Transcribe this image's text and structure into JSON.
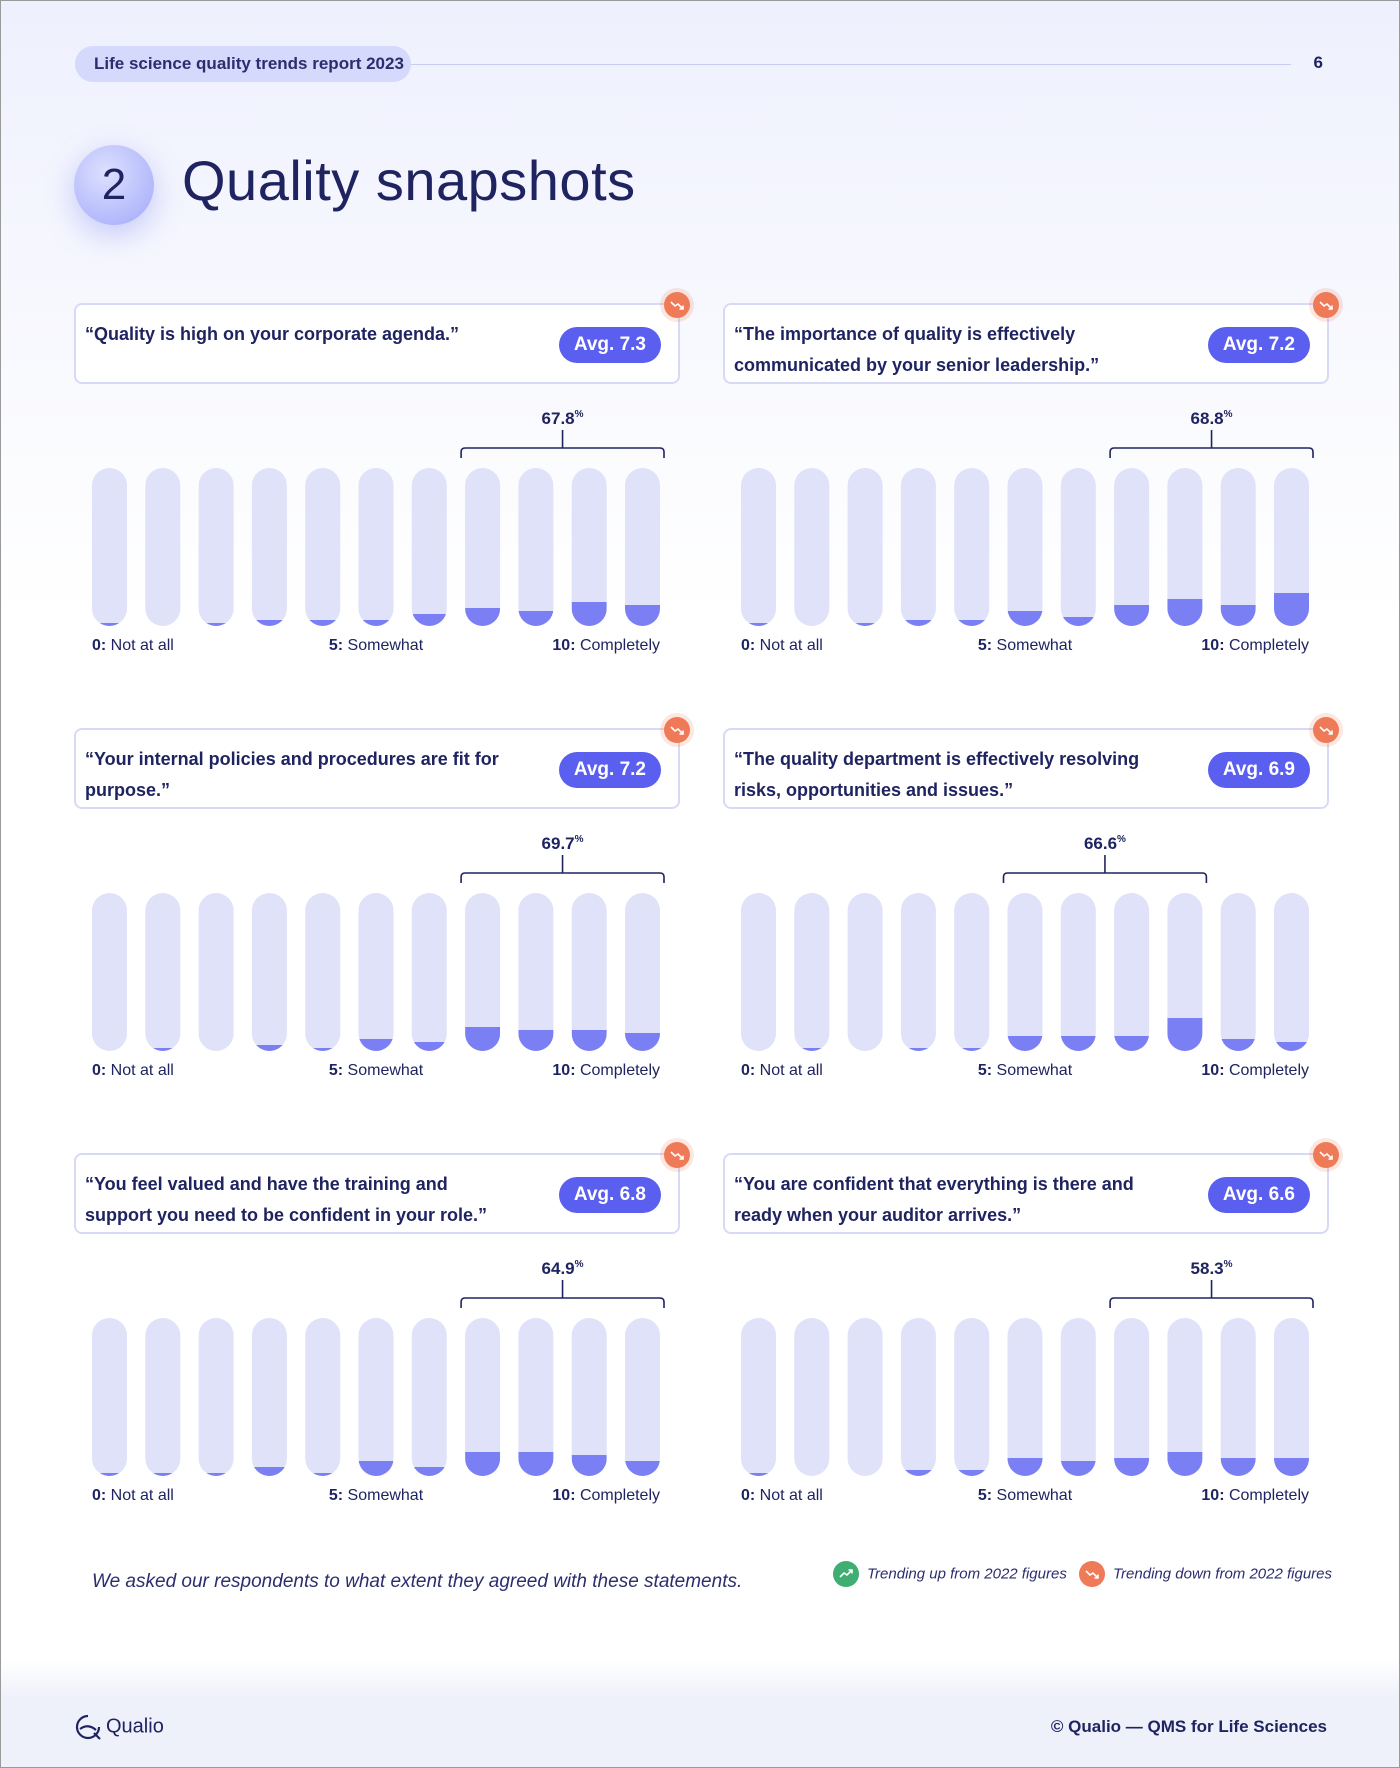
{
  "header": {
    "report_title": "Life science quality trends report 2023",
    "page_number": "6"
  },
  "section": {
    "number": "2",
    "title": "Quality snapshots"
  },
  "colors": {
    "accent": "#5a5ff0",
    "bar_track": "#dfe2f8",
    "bar_fill": "#7a80f4",
    "trend_down": "#ef7a57",
    "trend_up": "#3fae72"
  },
  "icons": {
    "trend_down": "trending-down-icon",
    "trend_up": "trending-up-icon",
    "logo": "qualio-logo-icon"
  },
  "chart_data": [
    {
      "type": "bar",
      "statement": "“Quality is high on your corporate agenda.”",
      "average": "Avg. 7.3",
      "trend": "down",
      "categories": [
        "0",
        "1",
        "2",
        "3",
        "4",
        "5",
        "6",
        "7",
        "8",
        "9",
        "10"
      ],
      "values": [
        1,
        0,
        1,
        2,
        2,
        2,
        4,
        6,
        5,
        8,
        7
      ],
      "bracket": {
        "from": 7,
        "to": 10,
        "label": "67.8",
        "unit": "%"
      },
      "axis_labels": [
        {
          "at": 0,
          "value": "0:",
          "text": " Not at all"
        },
        {
          "at": 5,
          "value": "5:",
          "text": " Somewhat"
        },
        {
          "at": 10,
          "value": "10:",
          "text": " Completely"
        }
      ]
    },
    {
      "type": "bar",
      "statement": "“The importance of quality is effectively communicated by your senior leadership.”",
      "average": "Avg. 7.2",
      "trend": "down",
      "categories": [
        "0",
        "1",
        "2",
        "3",
        "4",
        "5",
        "6",
        "7",
        "8",
        "9",
        "10"
      ],
      "values": [
        1,
        0,
        1,
        2,
        2,
        5,
        3,
        7,
        9,
        7,
        11
      ],
      "bracket": {
        "from": 7,
        "to": 10,
        "label": "68.8",
        "unit": "%"
      },
      "axis_labels": [
        {
          "at": 0,
          "value": "0:",
          "text": " Not at all"
        },
        {
          "at": 5,
          "value": "5:",
          "text": " Somewhat"
        },
        {
          "at": 10,
          "value": "10:",
          "text": " Completely"
        }
      ]
    },
    {
      "type": "bar",
      "statement": "“Your internal policies and procedures are fit for purpose.”",
      "average": "Avg. 7.2",
      "trend": "down",
      "categories": [
        "0",
        "1",
        "2",
        "3",
        "4",
        "5",
        "6",
        "7",
        "8",
        "9",
        "10"
      ],
      "values": [
        0,
        1,
        0,
        2,
        1,
        4,
        3,
        8,
        7,
        7,
        6
      ],
      "bracket": {
        "from": 7,
        "to": 10,
        "label": "69.7",
        "unit": "%"
      },
      "axis_labels": [
        {
          "at": 0,
          "value": "0:",
          "text": " Not at all"
        },
        {
          "at": 5,
          "value": "5:",
          "text": " Somewhat"
        },
        {
          "at": 10,
          "value": "10:",
          "text": " Completely"
        }
      ]
    },
    {
      "type": "bar",
      "statement": "“The quality department is effectively resolving risks, opportunities and issues.”",
      "average": "Avg. 6.9",
      "trend": "down",
      "categories": [
        "0",
        "1",
        "2",
        "3",
        "4",
        "5",
        "6",
        "7",
        "8",
        "9",
        "10"
      ],
      "values": [
        0,
        1,
        0,
        1,
        1,
        5,
        5,
        5,
        11,
        4,
        3
      ],
      "bracket": {
        "from": 5,
        "to": 8,
        "label": "66.6",
        "unit": "%"
      },
      "axis_labels": [
        {
          "at": 0,
          "value": "0:",
          "text": " Not at all"
        },
        {
          "at": 5,
          "value": "5:",
          "text": " Somewhat"
        },
        {
          "at": 10,
          "value": "10:",
          "text": " Completely"
        }
      ]
    },
    {
      "type": "bar",
      "statement": "“You feel valued and have the training and support you need to be confident in your role.”",
      "average": "Avg. 6.8",
      "trend": "down",
      "categories": [
        "0",
        "1",
        "2",
        "3",
        "4",
        "5",
        "6",
        "7",
        "8",
        "9",
        "10"
      ],
      "values": [
        1,
        1,
        1,
        3,
        1,
        5,
        3,
        8,
        8,
        7,
        5
      ],
      "bracket": {
        "from": 7,
        "to": 10,
        "label": "64.9",
        "unit": "%"
      },
      "axis_labels": [
        {
          "at": 0,
          "value": "0:",
          "text": " Not at all"
        },
        {
          "at": 5,
          "value": "5:",
          "text": " Somewhat"
        },
        {
          "at": 10,
          "value": "10:",
          "text": " Completely"
        }
      ]
    },
    {
      "type": "bar",
      "statement": "“You are confident that everything is there and ready when your auditor arrives.”",
      "average": "Avg. 6.6",
      "trend": "down",
      "categories": [
        "0",
        "1",
        "2",
        "3",
        "4",
        "5",
        "6",
        "7",
        "8",
        "9",
        "10"
      ],
      "values": [
        1,
        0,
        0,
        2,
        2,
        6,
        5,
        6,
        8,
        6,
        6
      ],
      "bracket": {
        "from": 7,
        "to": 10,
        "label": "58.3",
        "unit": "%"
      },
      "axis_labels": [
        {
          "at": 0,
          "value": "0:",
          "text": " Not at all"
        },
        {
          "at": 5,
          "value": "5:",
          "text": " Somewhat"
        },
        {
          "at": 10,
          "value": "10:",
          "text": " Completely"
        }
      ]
    }
  ],
  "footnote": "We asked our respondents to what extent they agreed with these statements.",
  "legend": {
    "up_label": "Trending up from 2022 figures",
    "down_label": "Trending down from 2022 figures"
  },
  "footer": {
    "brand": "Qualio",
    "copyright": "© Qualio — QMS for Life Sciences"
  }
}
